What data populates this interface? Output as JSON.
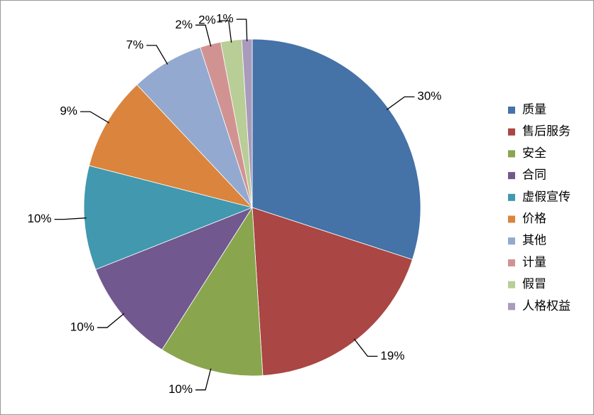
{
  "chart_data": {
    "type": "pie",
    "categories": [
      "质量",
      "售后服务",
      "安全",
      "合同",
      "虚假宣传",
      "价格",
      "其他",
      "计量",
      "假冒",
      "人格权益"
    ],
    "values": [
      30,
      19,
      10,
      10,
      10,
      9,
      7,
      2,
      2,
      1
    ],
    "value_labels": [
      "30%",
      "19%",
      "10%",
      "10%",
      "10%",
      "9%",
      "7%",
      "2%",
      "2%",
      "1%"
    ],
    "colors": [
      "#4572A7",
      "#AA4643",
      "#89A54E",
      "#71588F",
      "#4198AF",
      "#DB843D",
      "#93A9CF",
      "#D19392",
      "#B9CD96",
      "#A99BBD"
    ],
    "legend": "right"
  }
}
